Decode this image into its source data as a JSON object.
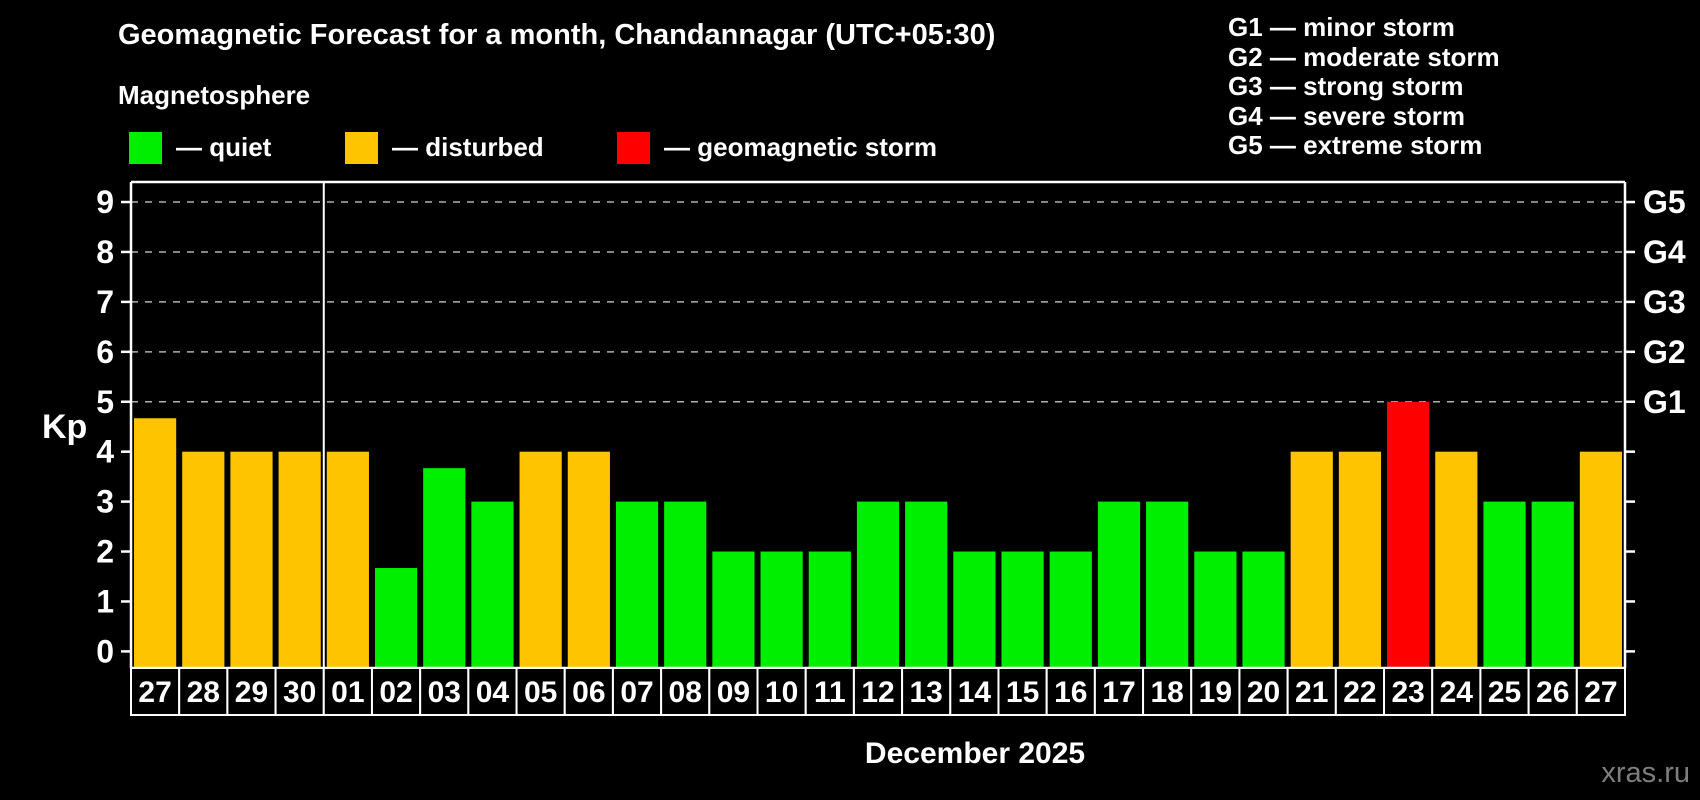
{
  "header": {
    "title": "Geomagnetic Forecast for a month, Chandannagar (UTC+05:30)",
    "subtitle": "Magnetosphere"
  },
  "kp_legend": [
    {
      "key": "quiet",
      "label": "— quiet",
      "color": "#00ee00"
    },
    {
      "key": "disturbed",
      "label": "— disturbed",
      "color": "#ffc400"
    },
    {
      "key": "storm",
      "label": "— geomagnetic storm",
      "color": "#fe0000"
    }
  ],
  "storm_scale": {
    "items": [
      "G1 — minor storm",
      "G2 — moderate storm",
      "G3 — strong storm",
      "G4 — severe storm",
      "G5 — extreme storm"
    ]
  },
  "chart_data": {
    "type": "bar",
    "title": "Geomagnetic Forecast for a month, Chandannagar (UTC+05:30)",
    "ylabel": "Kp",
    "xlabel": "December 2025",
    "ylim": [
      0,
      9.4
    ],
    "yticks": [
      0,
      1,
      2,
      3,
      4,
      5,
      6,
      7,
      8,
      9
    ],
    "gridlines_at": [
      5,
      6,
      7,
      8,
      9
    ],
    "grid": "dashed horizontal lines at Kp 5-9 only",
    "legend_position": "top-left",
    "right_axis": [
      {
        "kp": 5,
        "label": "G1"
      },
      {
        "kp": 6,
        "label": "G2"
      },
      {
        "kp": 7,
        "label": "G3"
      },
      {
        "kp": 8,
        "label": "G4"
      },
      {
        "kp": 9,
        "label": "G5"
      }
    ],
    "month_separator_after_index": 3,
    "bars": [
      {
        "day": "27",
        "kp": 4.67,
        "status": "disturbed"
      },
      {
        "day": "28",
        "kp": 4,
        "status": "disturbed"
      },
      {
        "day": "29",
        "kp": 4,
        "status": "disturbed"
      },
      {
        "day": "30",
        "kp": 4,
        "status": "disturbed"
      },
      {
        "day": "01",
        "kp": 4,
        "status": "disturbed"
      },
      {
        "day": "02",
        "kp": 1.67,
        "status": "quiet"
      },
      {
        "day": "03",
        "kp": 3.67,
        "status": "quiet"
      },
      {
        "day": "04",
        "kp": 3,
        "status": "quiet"
      },
      {
        "day": "05",
        "kp": 4,
        "status": "disturbed"
      },
      {
        "day": "06",
        "kp": 4,
        "status": "disturbed"
      },
      {
        "day": "07",
        "kp": 3,
        "status": "quiet"
      },
      {
        "day": "08",
        "kp": 3,
        "status": "quiet"
      },
      {
        "day": "09",
        "kp": 2,
        "status": "quiet"
      },
      {
        "day": "10",
        "kp": 2,
        "status": "quiet"
      },
      {
        "day": "11",
        "kp": 2,
        "status": "quiet"
      },
      {
        "day": "12",
        "kp": 3,
        "status": "quiet"
      },
      {
        "day": "13",
        "kp": 3,
        "status": "quiet"
      },
      {
        "day": "14",
        "kp": 2,
        "status": "quiet"
      },
      {
        "day": "15",
        "kp": 2,
        "status": "quiet"
      },
      {
        "day": "16",
        "kp": 2,
        "status": "quiet"
      },
      {
        "day": "17",
        "kp": 3,
        "status": "quiet"
      },
      {
        "day": "18",
        "kp": 3,
        "status": "quiet"
      },
      {
        "day": "19",
        "kp": 2,
        "status": "quiet"
      },
      {
        "day": "20",
        "kp": 2,
        "status": "quiet"
      },
      {
        "day": "21",
        "kp": 4,
        "status": "disturbed"
      },
      {
        "day": "22",
        "kp": 4,
        "status": "disturbed"
      },
      {
        "day": "23",
        "kp": 5,
        "status": "storm"
      },
      {
        "day": "24",
        "kp": 4,
        "status": "disturbed"
      },
      {
        "day": "25",
        "kp": 3,
        "status": "quiet"
      },
      {
        "day": "26",
        "kp": 3,
        "status": "quiet"
      },
      {
        "day": "27",
        "kp": 4,
        "status": "disturbed"
      }
    ]
  },
  "footer": {
    "month_label": "December 2025",
    "watermark": "xras.ru"
  },
  "colors": {
    "quiet": "#00ee00",
    "disturbed": "#ffc400",
    "storm": "#fe0000",
    "grid": "#b0b0b0",
    "axis": "#ffffff",
    "background": "#000000",
    "watermark": "#7e7e7e"
  }
}
